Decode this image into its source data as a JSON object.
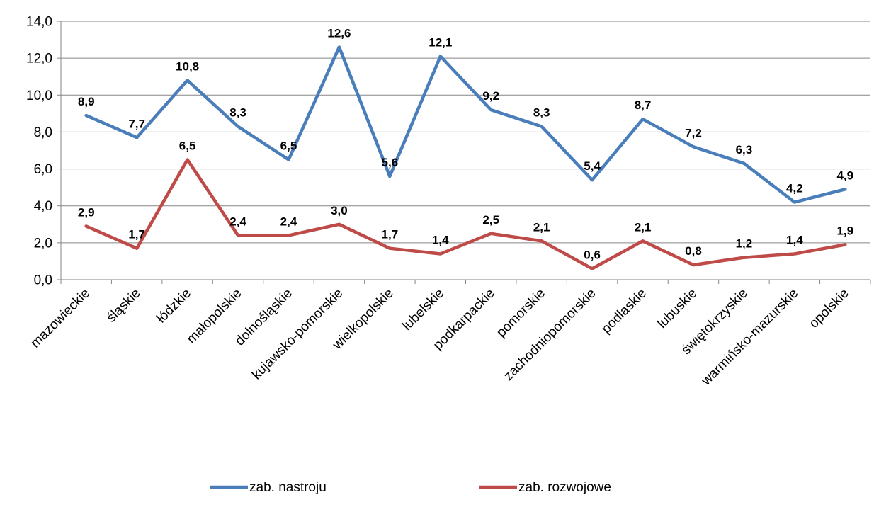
{
  "chart_data": {
    "type": "line",
    "title": "",
    "xlabel": "",
    "ylabel": "",
    "ylim": [
      0,
      14
    ],
    "y_ticks": [
      "0,0",
      "2,0",
      "4,0",
      "6,0",
      "8,0",
      "10,0",
      "12,0",
      "14,0"
    ],
    "grid": "horizontal",
    "legend_position": "bottom",
    "categories": [
      "mazowieckie",
      "śląskie",
      "łódzkie",
      "małopolskie",
      "dolnośląskie",
      "kujawsko-pomorskie",
      "wielkopolskie",
      "lubelskie",
      "podkarpackie",
      "pomorskie",
      "zachodniopomorskie",
      "podlaskie",
      "lubuskie",
      "świętokrzyskie",
      "warmińsko-mazurskie",
      "opolskie"
    ],
    "series": [
      {
        "name": "zab. nastroju",
        "color": "#4A7EBB",
        "values": [
          8.9,
          7.7,
          10.8,
          8.3,
          6.5,
          12.6,
          5.6,
          12.1,
          9.2,
          8.3,
          5.4,
          8.7,
          7.2,
          6.3,
          4.2,
          4.9
        ],
        "labels": [
          "8,9",
          "7,7",
          "10,8",
          "8,3",
          "6,5",
          "12,6",
          "5,6",
          "12,1",
          "9,2",
          "8,3",
          "5,4",
          "8,7",
          "7,2",
          "6,3",
          "4,2",
          "4,9"
        ]
      },
      {
        "name": "zab. rozwojowe",
        "color": "#BE4B48",
        "values": [
          2.9,
          1.7,
          6.5,
          2.4,
          2.4,
          3.0,
          1.7,
          1.4,
          2.5,
          2.1,
          0.6,
          2.1,
          0.8,
          1.2,
          1.4,
          1.9
        ],
        "labels": [
          "2,9",
          "1,7",
          "6,5",
          "2,4",
          "2,4",
          "3,0",
          "1,7",
          "1,4",
          "2,5",
          "2,1",
          "0,6",
          "2,1",
          "0,8",
          "1,2",
          "1,4",
          "1,9"
        ]
      }
    ]
  }
}
